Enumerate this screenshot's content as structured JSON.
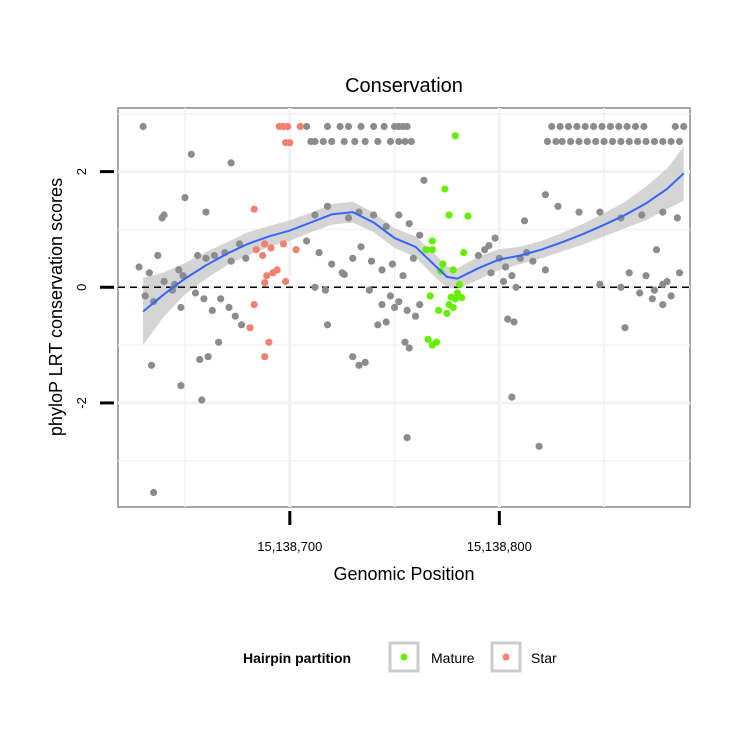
{
  "chart_data": {
    "type": "scatter",
    "title": "Conservation",
    "xlabel": "Genomic Position",
    "ylabel": "phyloP LRT conservation scores",
    "xlim": [
      15138618,
      15138891
    ],
    "ylim": [
      -3.8,
      3.1
    ],
    "x_ticks": [
      15138700,
      15138800
    ],
    "x_tick_labels": [
      "15,138,700",
      "15,138,800"
    ],
    "y_ticks": [
      -2,
      0,
      2
    ],
    "y_tick_labels": [
      "-2",
      "0",
      "2"
    ],
    "grid": true,
    "reference_line": {
      "y": 0,
      "style": "dashed"
    },
    "legend": {
      "title": "Hairpin partition",
      "position": "bottom",
      "entries": [
        "Mature",
        "Star"
      ]
    },
    "colors": {
      "background": "#888888",
      "Mature": "#66ee00",
      "Star": "#f08070",
      "smooth_line": "#3366ff",
      "smooth_band": "#cccccc"
    },
    "series": [
      {
        "name": "Mature",
        "points": [
          [
            15138779,
            2.62
          ],
          [
            15138774,
            1.7
          ],
          [
            15138776,
            1.25
          ],
          [
            15138785,
            1.23
          ],
          [
            15138783,
            0.6
          ],
          [
            15138768,
            0.8
          ],
          [
            15138765,
            0.65
          ],
          [
            15138768,
            0.65
          ],
          [
            15138773,
            0.4
          ],
          [
            15138772,
            0.28
          ],
          [
            15138778,
            0.3
          ],
          [
            15138781,
            0.05
          ],
          [
            15138780,
            -0.1
          ],
          [
            15138782,
            -0.18
          ],
          [
            15138777,
            -0.17
          ],
          [
            15138779,
            -0.2
          ],
          [
            15138767,
            -0.15
          ],
          [
            15138776,
            -0.3
          ],
          [
            15138778,
            -0.35
          ],
          [
            15138771,
            -0.4
          ],
          [
            15138775,
            -0.45
          ],
          [
            15138766,
            -0.9
          ],
          [
            15138770,
            -0.95
          ],
          [
            15138768,
            -1.0
          ]
        ]
      },
      {
        "name": "Star",
        "points": [
          [
            15138695,
            2.78
          ],
          [
            15138697,
            2.78
          ],
          [
            15138699,
            2.78
          ],
          [
            15138705,
            2.78
          ],
          [
            15138698,
            2.5
          ],
          [
            15138700,
            2.5
          ],
          [
            15138683,
            1.35
          ],
          [
            15138697,
            0.75
          ],
          [
            15138688,
            0.75
          ],
          [
            15138684,
            0.65
          ],
          [
            15138691,
            0.68
          ],
          [
            15138703,
            0.65
          ],
          [
            15138687,
            0.55
          ],
          [
            15138694,
            0.3
          ],
          [
            15138692,
            0.25
          ],
          [
            15138689,
            0.2
          ],
          [
            15138698,
            0.1
          ],
          [
            15138688,
            0.08
          ],
          [
            15138683,
            -0.3
          ],
          [
            15138681,
            -0.7
          ],
          [
            15138690,
            -0.95
          ],
          [
            15138688,
            -1.2
          ]
        ]
      },
      {
        "name": "",
        "points": [
          [
            15138630,
            2.78
          ],
          [
            15138640,
            1.25
          ],
          [
            15138639,
            1.2
          ],
          [
            15138645,
            0.05
          ],
          [
            15138660,
            1.3
          ],
          [
            15138650,
            1.55
          ],
          [
            15138653,
            2.3
          ],
          [
            15138672,
            2.15
          ],
          [
            15138628,
            0.35
          ],
          [
            15138633,
            0.25
          ],
          [
            15138637,
            0.55
          ],
          [
            15138640,
            0.1
          ],
          [
            15138647,
            0.3
          ],
          [
            15138649,
            0.2
          ],
          [
            15138656,
            0.55
          ],
          [
            15138660,
            0.5
          ],
          [
            15138664,
            0.55
          ],
          [
            15138669,
            0.6
          ],
          [
            15138672,
            0.45
          ],
          [
            15138676,
            0.75
          ],
          [
            15138679,
            0.5
          ],
          [
            15138631,
            -0.15
          ],
          [
            15138635,
            -0.25
          ],
          [
            15138644,
            -0.05
          ],
          [
            15138648,
            -0.35
          ],
          [
            15138655,
            -0.1
          ],
          [
            15138659,
            -0.2
          ],
          [
            15138663,
            -0.4
          ],
          [
            15138667,
            -0.2
          ],
          [
            15138671,
            -0.35
          ],
          [
            15138674,
            -0.5
          ],
          [
            15138677,
            -0.65
          ],
          [
            15138634,
            -1.35
          ],
          [
            15138648,
            -1.7
          ],
          [
            15138657,
            -1.25
          ],
          [
            15138661,
            -1.2
          ],
          [
            15138666,
            -0.95
          ],
          [
            15138658,
            -1.95
          ],
          [
            15138635,
            -3.55
          ],
          [
            15138712,
            1.25
          ],
          [
            15138718,
            1.4
          ],
          [
            15138728,
            1.2
          ],
          [
            15138733,
            1.3
          ],
          [
            15138740,
            1.25
          ],
          [
            15138746,
            1.05
          ],
          [
            15138752,
            1.25
          ],
          [
            15138757,
            1.1
          ],
          [
            15138762,
            0.9
          ],
          [
            15138708,
            0.8
          ],
          [
            15138714,
            0.6
          ],
          [
            15138720,
            0.4
          ],
          [
            15138725,
            0.25
          ],
          [
            15138730,
            0.5
          ],
          [
            15138734,
            0.7
          ],
          [
            15138739,
            0.45
          ],
          [
            15138744,
            0.3
          ],
          [
            15138749,
            0.4
          ],
          [
            15138754,
            0.2
          ],
          [
            15138759,
            0.5
          ],
          [
            15138712,
            0.0
          ],
          [
            15138717,
            -0.05
          ],
          [
            15138726,
            0.22
          ],
          [
            15138738,
            -0.05
          ],
          [
            15138748,
            -0.15
          ],
          [
            15138752,
            -0.25
          ],
          [
            15138756,
            -0.4
          ],
          [
            15138760,
            -0.5
          ],
          [
            15138718,
            -0.65
          ],
          [
            15138730,
            -1.2
          ],
          [
            15138733,
            -1.35
          ],
          [
            15138736,
            -1.3
          ],
          [
            15138742,
            -0.65
          ],
          [
            15138746,
            -0.6
          ],
          [
            15138750,
            -0.35
          ],
          [
            15138755,
            -0.95
          ],
          [
            15138757,
            -1.05
          ],
          [
            15138744,
            -0.3
          ],
          [
            15138762,
            -0.3
          ],
          [
            15138756,
            -2.6
          ],
          [
            15138764,
            1.85
          ],
          [
            15138793,
            0.65
          ],
          [
            15138795,
            0.72
          ],
          [
            15138798,
            0.85
          ],
          [
            15138800,
            0.5
          ],
          [
            15138803,
            0.35
          ],
          [
            15138806,
            0.2
          ],
          [
            15138810,
            0.5
          ],
          [
            15138813,
            0.6
          ],
          [
            15138816,
            0.45
          ],
          [
            15138822,
            0.3
          ],
          [
            15138790,
            0.55
          ],
          [
            15138796,
            0.25
          ],
          [
            15138802,
            0.1
          ],
          [
            15138808,
            0.0
          ],
          [
            15138804,
            -0.55
          ],
          [
            15138807,
            -0.6
          ],
          [
            15138812,
            1.15
          ],
          [
            15138822,
            1.6
          ],
          [
            15138828,
            1.4
          ],
          [
            15138838,
            1.3
          ],
          [
            15138848,
            1.3
          ],
          [
            15138858,
            1.2
          ],
          [
            15138868,
            1.25
          ],
          [
            15138878,
            1.3
          ],
          [
            15138885,
            1.2
          ],
          [
            15138806,
            -1.9
          ],
          [
            15138819,
            -2.75
          ],
          [
            15138848,
            0.05
          ],
          [
            15138858,
            0.0
          ],
          [
            15138862,
            0.25
          ],
          [
            15138870,
            0.2
          ],
          [
            15138875,
            0.65
          ],
          [
            15138880,
            0.1
          ],
          [
            15138886,
            0.25
          ],
          [
            15138878,
            0.05
          ],
          [
            15138860,
            -0.7
          ],
          [
            15138873,
            -0.2
          ],
          [
            15138878,
            -0.3
          ],
          [
            15138882,
            -0.15
          ],
          [
            15138874,
            -0.05
          ],
          [
            15138867,
            -0.1
          ],
          [
            15138712,
            2.52
          ],
          [
            15138716,
            2.52
          ],
          [
            15138718,
            2.78
          ],
          [
            15138720,
            2.52
          ],
          [
            15138724,
            2.78
          ],
          [
            15138726,
            2.52
          ],
          [
            15138728,
            2.78
          ],
          [
            15138731,
            2.52
          ],
          [
            15138734,
            2.78
          ],
          [
            15138736,
            2.52
          ],
          [
            15138740,
            2.78
          ],
          [
            15138742,
            2.52
          ],
          [
            15138745,
            2.78
          ],
          [
            15138748,
            2.52
          ],
          [
            15138750,
            2.78
          ],
          [
            15138752,
            2.78
          ],
          [
            15138754,
            2.78
          ],
          [
            15138756,
            2.78
          ],
          [
            15138752,
            2.52
          ],
          [
            15138755,
            2.52
          ],
          [
            15138758,
            2.52
          ],
          [
            15138708,
            2.78
          ],
          [
            15138710,
            2.52
          ],
          [
            15138823,
            2.52
          ],
          [
            15138827,
            2.52
          ],
          [
            15138830,
            2.52
          ],
          [
            15138834,
            2.52
          ],
          [
            15138838,
            2.52
          ],
          [
            15138842,
            2.52
          ],
          [
            15138846,
            2.52
          ],
          [
            15138850,
            2.52
          ],
          [
            15138854,
            2.52
          ],
          [
            15138858,
            2.52
          ],
          [
            15138862,
            2.52
          ],
          [
            15138866,
            2.52
          ],
          [
            15138870,
            2.52
          ],
          [
            15138874,
            2.52
          ],
          [
            15138878,
            2.52
          ],
          [
            15138882,
            2.52
          ],
          [
            15138886,
            2.52
          ],
          [
            15138825,
            2.78
          ],
          [
            15138829,
            2.78
          ],
          [
            15138833,
            2.78
          ],
          [
            15138837,
            2.78
          ],
          [
            15138841,
            2.78
          ],
          [
            15138845,
            2.78
          ],
          [
            15138849,
            2.78
          ],
          [
            15138853,
            2.78
          ],
          [
            15138857,
            2.78
          ],
          [
            15138861,
            2.78
          ],
          [
            15138865,
            2.78
          ],
          [
            15138869,
            2.78
          ],
          [
            15138884,
            2.78
          ],
          [
            15138888,
            2.78
          ]
        ]
      }
    ],
    "smooth": {
      "x": [
        15138630,
        15138640,
        15138650,
        15138660,
        15138670,
        15138680,
        15138690,
        15138700,
        15138710,
        15138720,
        15138730,
        15138740,
        15138750,
        15138760,
        15138770,
        15138775,
        15138780,
        15138790,
        15138800,
        15138810,
        15138820,
        15138830,
        15138840,
        15138850,
        15138860,
        15138870,
        15138880,
        15138888
      ],
      "y": [
        -0.42,
        -0.12,
        0.15,
        0.38,
        0.58,
        0.75,
        0.88,
        0.98,
        1.12,
        1.26,
        1.3,
        1.12,
        0.85,
        0.7,
        0.35,
        0.18,
        0.15,
        0.33,
        0.48,
        0.55,
        0.65,
        0.78,
        0.92,
        1.08,
        1.25,
        1.45,
        1.7,
        1.97
      ],
      "lower": [
        -1.0,
        -0.5,
        -0.12,
        0.15,
        0.38,
        0.55,
        0.7,
        0.8,
        0.95,
        1.08,
        1.12,
        0.95,
        0.68,
        0.52,
        0.15,
        0.0,
        -0.03,
        0.13,
        0.3,
        0.4,
        0.5,
        0.62,
        0.74,
        0.88,
        1.02,
        1.16,
        1.35,
        1.5
      ],
      "upper": [
        0.16,
        0.26,
        0.42,
        0.61,
        0.78,
        0.95,
        1.06,
        1.16,
        1.29,
        1.44,
        1.48,
        1.29,
        1.02,
        0.88,
        0.55,
        0.36,
        0.33,
        0.53,
        0.66,
        0.7,
        0.8,
        0.94,
        1.1,
        1.28,
        1.48,
        1.74,
        2.05,
        2.44
      ]
    }
  }
}
